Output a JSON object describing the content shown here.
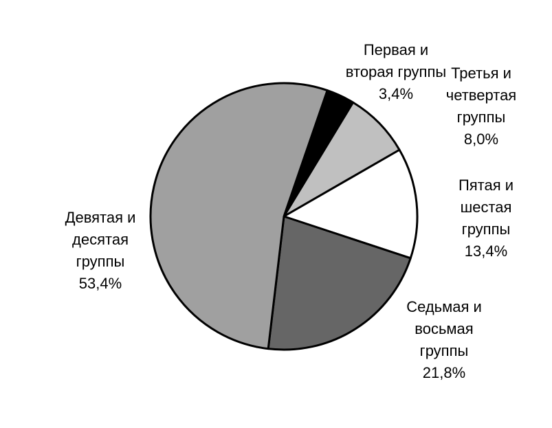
{
  "chart_data": {
    "type": "pie",
    "categories": [
      "Первая и вторая группы",
      "Третья и четвертая группы",
      "Пятая и шестая группы",
      "Седьмая и восьмая группы",
      "Девятая и десятая группы"
    ],
    "values": [
      3.4,
      8.0,
      13.4,
      21.8,
      53.4
    ],
    "value_labels": [
      "3,4%",
      "8,0%",
      "13,4%",
      "21,8%",
      "53,4%"
    ],
    "colors": [
      "#000000",
      "#c0c0c0",
      "#ffffff",
      "#666666",
      "#a0a0a0"
    ]
  }
}
